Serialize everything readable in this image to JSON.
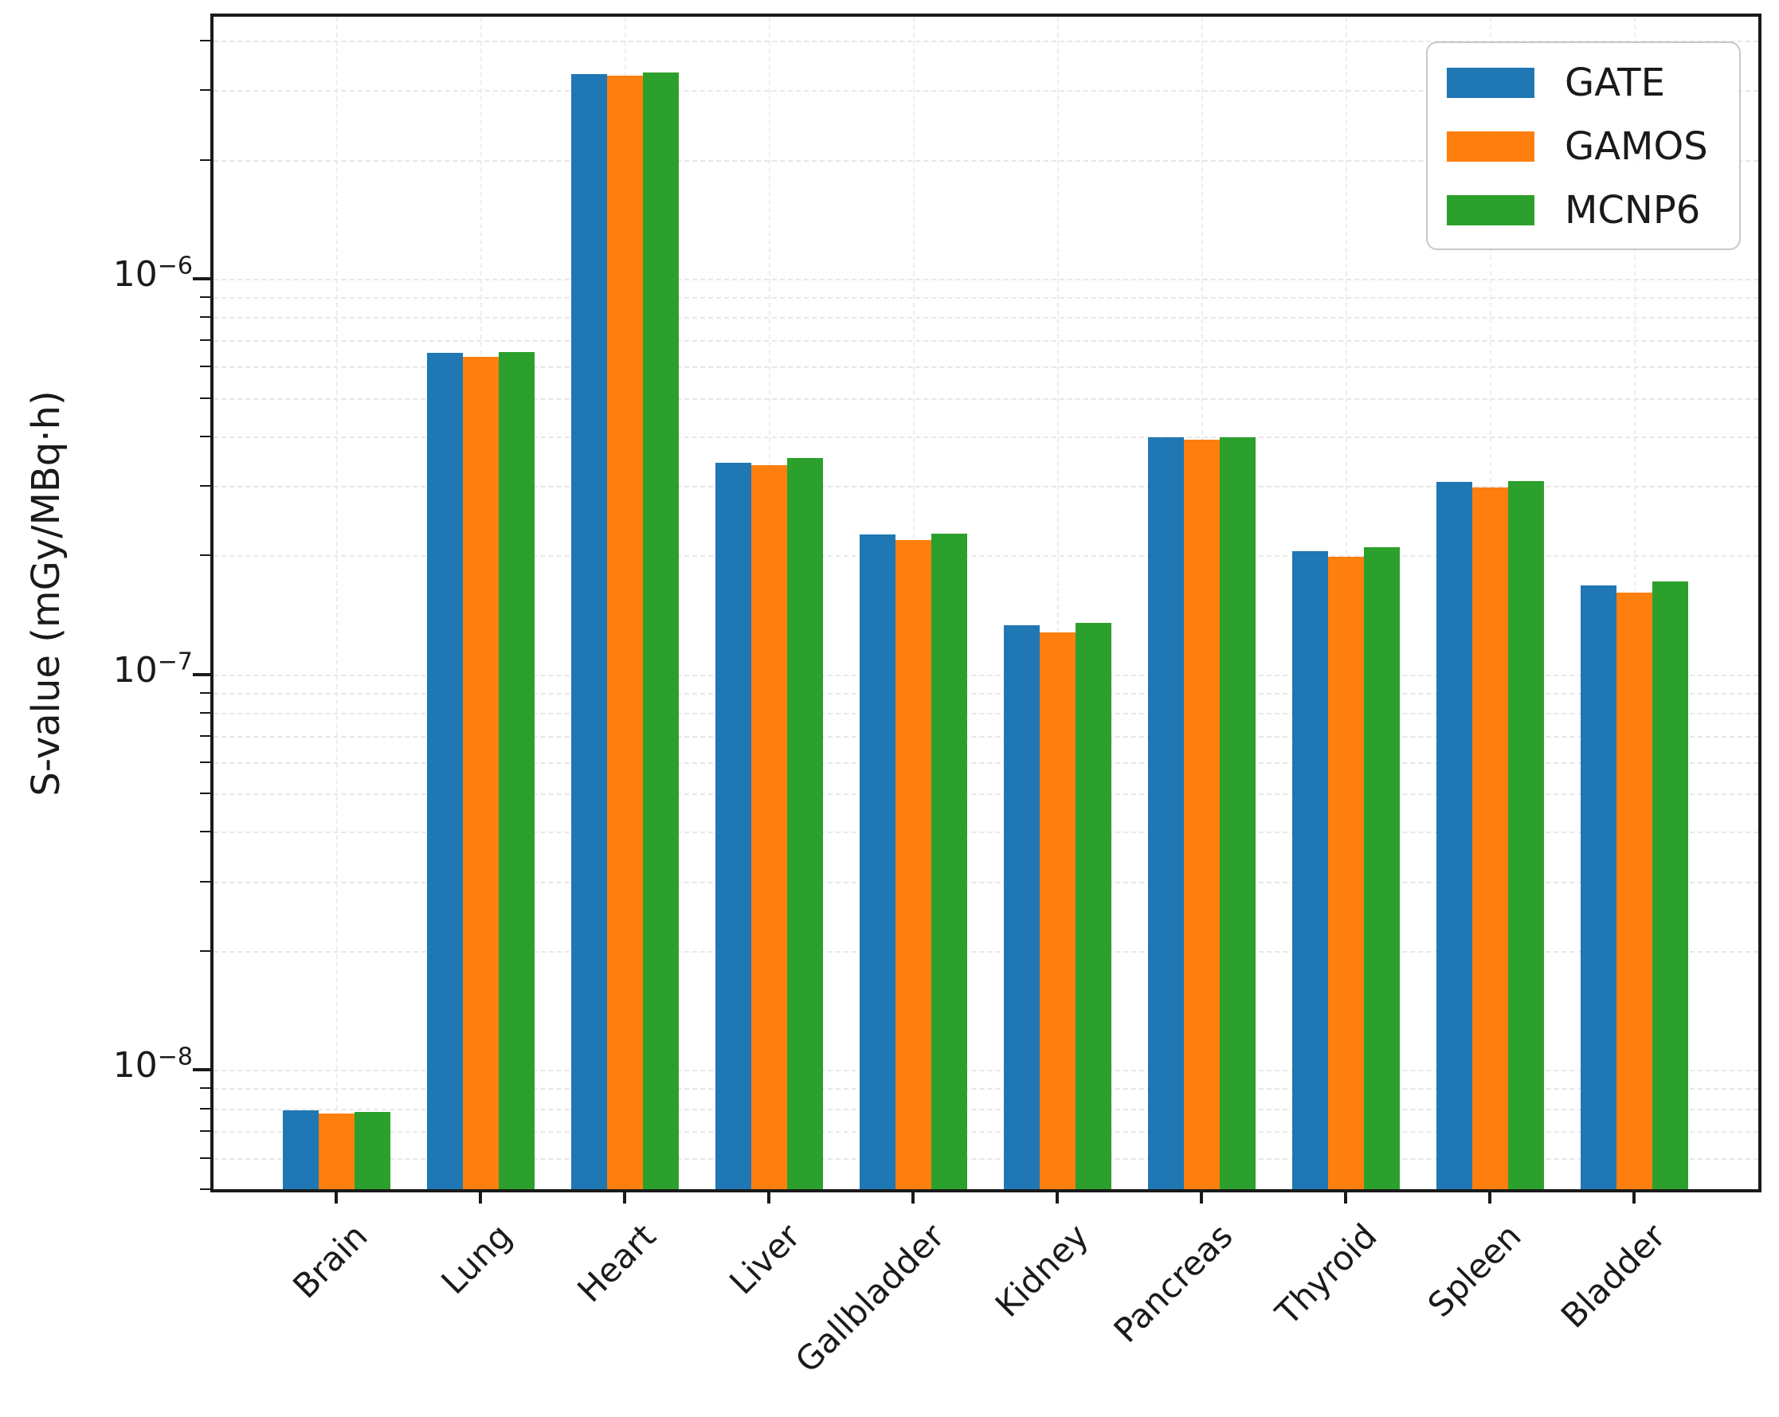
{
  "chart_data": {
    "type": "bar",
    "title": "",
    "xlabel": "",
    "ylabel": "S-value (mGy/MBq·h)",
    "yscale": "log",
    "ylim": [
      5e-09,
      4.6e-06
    ],
    "grid": true,
    "legend_position": "upper right",
    "categories": [
      "Brain",
      "Lung",
      "Heart",
      "Liver",
      "Gallbladder",
      "Kidney",
      "Pancreas",
      "Thyroid",
      "Spleen",
      "Bladder"
    ],
    "series": [
      {
        "name": "GATE",
        "color": "#1f77b4",
        "values": [
          7.9e-09,
          6.5e-07,
          3.3e-06,
          3.43e-07,
          2.26e-07,
          1.33e-07,
          3.97e-07,
          2.05e-07,
          3.07e-07,
          1.68e-07
        ]
      },
      {
        "name": "GAMOS",
        "color": "#ff7f0e",
        "values": [
          7.75e-09,
          6.35e-07,
          3.27e-06,
          3.38e-07,
          2.19e-07,
          1.28e-07,
          3.92e-07,
          1.98e-07,
          2.97e-07,
          1.61e-07
        ]
      },
      {
        "name": "MCNP6",
        "color": "#2ca02c",
        "values": [
          7.85e-09,
          6.52e-07,
          3.32e-06,
          3.52e-07,
          2.27e-07,
          1.35e-07,
          3.98e-07,
          2.1e-07,
          3.08e-07,
          1.72e-07
        ]
      }
    ],
    "y_axis": {
      "major_ticks": [
        {
          "value": 1e-06,
          "label_base": "10",
          "label_exp": "−6"
        },
        {
          "value": 1e-07,
          "label_base": "10",
          "label_exp": "−7"
        },
        {
          "value": 1e-08,
          "label_base": "10",
          "label_exp": "−8"
        }
      ]
    }
  }
}
